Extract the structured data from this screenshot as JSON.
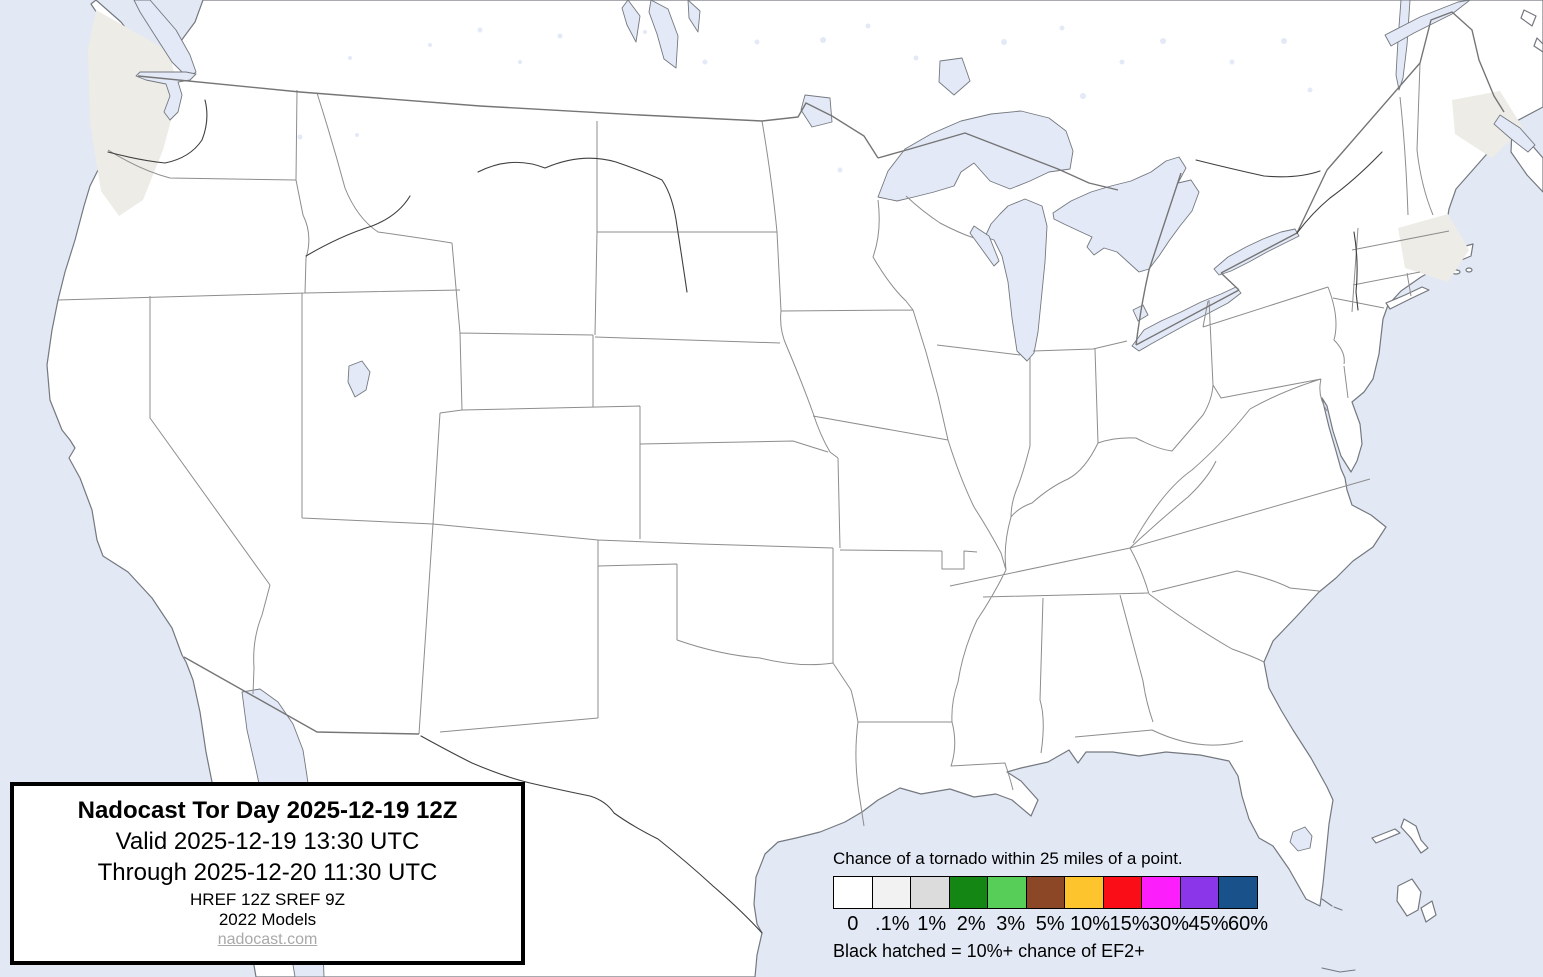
{
  "title_box": {
    "title": "Nadocast Tor Day 2025-12-19 12Z",
    "valid_line": "Valid 2025-12-19 13:30 UTC",
    "through_line": "Through 2025-12-20 11:30 UTC",
    "models_line": "HREF 12Z SREF 9Z",
    "models_year_line": "2022 Models",
    "website": "nadocast.com"
  },
  "legend": {
    "heading": "Chance of a tornado within 25 miles of a point.",
    "footnote": "Black hatched = 10%+ chance of EF2+",
    "bins": [
      {
        "label": "0",
        "color": "#FFFFFF"
      },
      {
        "label": ".1%",
        "color": "#F2F2F2"
      },
      {
        "label": "1%",
        "color": "#DCDCDC"
      },
      {
        "label": "2%",
        "color": "#138613"
      },
      {
        "label": "3%",
        "color": "#57CE57"
      },
      {
        "label": "5%",
        "color": "#8B4726"
      },
      {
        "label": "10%",
        "color": "#FEC42D"
      },
      {
        "label": "15%",
        "color": "#FA0D17"
      },
      {
        "label": "30%",
        "color": "#FD1EFC"
      },
      {
        "label": "45%",
        "color": "#8B36E9"
      },
      {
        "label": "60%",
        "color": "#19518A"
      }
    ]
  },
  "map": {
    "region": "Continental United States with state borders, southern Canada and northern Mexico",
    "forecast_areas": [
      {
        "region": "coastal Washington / Puget Sound",
        "probability": ".1%"
      },
      {
        "region": "coastal New England near Boston",
        "probability": ".1%"
      },
      {
        "region": "coastal Maine",
        "probability": ".1%"
      }
    ],
    "water_features": [
      "Pacific Ocean",
      "Atlantic Ocean",
      "Gulf of Mexico",
      "Gulf of California",
      "Puget Sound",
      "Great Salt Lake",
      "Lake Superior",
      "Lake Michigan",
      "Lake Huron",
      "Lake St. Clair",
      "Lake Erie",
      "Lake Ontario",
      "Lake Champlain",
      "Lake Winnipeg",
      "Lake of the Woods",
      "Lake Nipigon",
      "Lake Okeechobee",
      "St. Lawrence River",
      "Bay of Fundy"
    ]
  },
  "colors": {
    "ocean": "#E2E8F4",
    "land": "#FFFFFF",
    "lake": "#E3E9F7",
    "coastline": "#74787F",
    "state_border": "#8D8D8D",
    "country_border": "#757575",
    "river": "#3F3F3F",
    "low_prob_patch": "#EDECE7",
    "box_border": "#000000",
    "link": "#A9A9A9",
    "text": "#000000"
  }
}
